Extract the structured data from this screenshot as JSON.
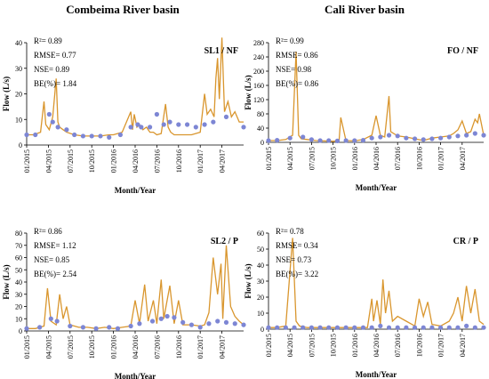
{
  "figure": {
    "left_heading": "Combeima River basin",
    "right_heading": "Cali River basin"
  },
  "colors": {
    "simulated": "#d9962e",
    "observed": "#7d86d4",
    "axis": "#000000"
  },
  "chart_data": [
    {
      "type": "line",
      "panel_id": "SL1 / NF",
      "xlabel": "Month/Year",
      "ylabel": "Flow (L/s)",
      "ylim": [
        0,
        40
      ],
      "yticks": [
        0,
        10,
        20,
        30,
        40
      ],
      "xlim": [
        2015.0,
        2017.5
      ],
      "xticks": [
        "01/2015",
        "04/2015",
        "07/2015",
        "10/2015",
        "01/2016",
        "04/2016",
        "07/2016",
        "10/2016",
        "01/2017",
        "04/2017"
      ],
      "stats": [
        "R²= 0.89",
        "RMSE= 0.77",
        "NSE= 0.89",
        "BE(%)= 1.84"
      ],
      "series": [
        {
          "role": "simulated",
          "x": [
            2015.0,
            2015.08,
            2015.16,
            2015.2,
            2015.22,
            2015.26,
            2015.3,
            2015.34,
            2015.36,
            2015.38,
            2015.42,
            2015.46,
            2015.55,
            2015.65,
            2015.75,
            2015.85,
            2015.95,
            2016.0,
            2016.1,
            2016.2,
            2016.22,
            2016.24,
            2016.27,
            2016.3,
            2016.34,
            2016.38,
            2016.42,
            2016.46,
            2016.5,
            2016.55,
            2016.6,
            2016.63,
            2016.66,
            2016.7,
            2016.75,
            2016.8,
            2016.9,
            2017.0,
            2017.05,
            2017.08,
            2017.12,
            2017.16,
            2017.18,
            2017.2,
            2017.22,
            2017.25,
            2017.28,
            2017.32,
            2017.36,
            2017.4,
            2017.45,
            2017.5
          ],
          "y": [
            4,
            4,
            5,
            17,
            8,
            6,
            11,
            26,
            9,
            7,
            6,
            5,
            4,
            3.5,
            3.5,
            3.5,
            4,
            4,
            5,
            13,
            6,
            12,
            7,
            8,
            6,
            7,
            5,
            5,
            4,
            4.5,
            16,
            7,
            5,
            4,
            4,
            4,
            4,
            5,
            20,
            12,
            14,
            11,
            26,
            34,
            18,
            42,
            13,
            17,
            11,
            13,
            9,
            9
          ]
        },
        {
          "role": "observed",
          "x": [
            2015.0,
            2015.1,
            2015.26,
            2015.3,
            2015.36,
            2015.46,
            2015.55,
            2015.65,
            2015.75,
            2015.85,
            2015.95,
            2016.08,
            2016.2,
            2016.28,
            2016.32,
            2016.42,
            2016.5,
            2016.58,
            2016.65,
            2016.75,
            2016.85,
            2016.95,
            2017.05,
            2017.15,
            2017.3,
            2017.5
          ],
          "y": [
            4,
            4,
            12,
            9,
            7,
            6,
            4,
            3.5,
            3.5,
            3.5,
            3,
            4,
            7,
            8,
            7,
            7,
            12,
            8,
            9,
            8,
            8,
            7,
            8,
            9,
            11,
            7
          ]
        }
      ]
    },
    {
      "type": "line",
      "panel_id": "FO / NF",
      "xlabel": "Month/Year",
      "ylabel": "Flow (L/s)",
      "ylim": [
        0,
        280
      ],
      "yticks": [
        0,
        40,
        80,
        120,
        160,
        200,
        240,
        280
      ],
      "xlim": [
        2015.0,
        2017.5
      ],
      "xticks": [
        "01/2015",
        "04/2015",
        "07/2015",
        "10/2015",
        "01/2016",
        "04/2016",
        "07/2016",
        "10/2016",
        "01/2017",
        "04/2017"
      ],
      "stats": [
        "R²= 0.99",
        "RMSE= 0.86",
        "NSE= 0.98",
        "BE(%)= 0.86"
      ],
      "series": [
        {
          "role": "simulated",
          "x": [
            2015.0,
            2015.1,
            2015.2,
            2015.28,
            2015.32,
            2015.35,
            2015.38,
            2015.45,
            2015.55,
            2015.65,
            2015.75,
            2015.82,
            2015.84,
            2015.9,
            2016.0,
            2016.1,
            2016.2,
            2016.25,
            2016.3,
            2016.35,
            2016.4,
            2016.42,
            2016.5,
            2016.6,
            2016.7,
            2016.8,
            2016.9,
            2017.0,
            2017.1,
            2017.15,
            2017.2,
            2017.25,
            2017.3,
            2017.35,
            2017.4,
            2017.43,
            2017.45,
            2017.5
          ],
          "y": [
            5,
            5,
            8,
            20,
            255,
            20,
            10,
            8,
            5,
            4,
            3,
            5,
            70,
            5,
            4,
            8,
            20,
            75,
            20,
            15,
            130,
            30,
            18,
            15,
            10,
            5,
            12,
            15,
            18,
            25,
            35,
            60,
            25,
            30,
            65,
            55,
            80,
            20
          ]
        },
        {
          "role": "observed",
          "x": [
            2015.0,
            2015.1,
            2015.25,
            2015.4,
            2015.5,
            2015.6,
            2015.7,
            2015.8,
            2015.9,
            2016.0,
            2016.1,
            2016.2,
            2016.3,
            2016.4,
            2016.5,
            2016.6,
            2016.7,
            2016.8,
            2016.9,
            2017.0,
            2017.1,
            2017.2,
            2017.3,
            2017.4,
            2017.5
          ],
          "y": [
            5,
            6,
            12,
            15,
            8,
            5,
            5,
            4,
            5,
            5,
            6,
            12,
            15,
            20,
            18,
            12,
            10,
            8,
            10,
            12,
            15,
            18,
            20,
            25,
            20
          ]
        }
      ]
    },
    {
      "type": "line",
      "panel_id": "SL2 / P",
      "xlabel": "Month/Year",
      "ylabel": "Flow (L/s)",
      "ylim": [
        0,
        80
      ],
      "yticks": [
        0,
        10,
        20,
        30,
        40,
        50,
        60,
        70,
        80
      ],
      "xlim": [
        2015.0,
        2017.5
      ],
      "xticks": [
        "01/2015",
        "04/2015",
        "07/2015",
        "10/2015",
        "01/2016",
        "04/2016",
        "07/2016",
        "10/2016",
        "01/2017",
        "04/2017"
      ],
      "stats": [
        "R²= 0.86",
        "RMSE= 1.12",
        "NSE= 0.85",
        "BE(%)= 2.54"
      ],
      "series": [
        {
          "role": "simulated",
          "x": [
            2015.0,
            2015.1,
            2015.2,
            2015.24,
            2015.28,
            2015.34,
            2015.38,
            2015.42,
            2015.46,
            2015.5,
            2015.6,
            2015.7,
            2015.8,
            2015.9,
            2016.0,
            2016.1,
            2016.2,
            2016.25,
            2016.3,
            2016.36,
            2016.4,
            2016.46,
            2016.5,
            2016.55,
            2016.58,
            2016.65,
            2016.7,
            2016.75,
            2016.8,
            2016.9,
            2017.0,
            2017.05,
            2017.1,
            2017.15,
            2017.2,
            2017.24,
            2017.26,
            2017.3,
            2017.35,
            2017.4,
            2017.45,
            2017.5
          ],
          "y": [
            2,
            2,
            4,
            35,
            8,
            5,
            30,
            10,
            20,
            5,
            3,
            3,
            2,
            3,
            2,
            3,
            4,
            25,
            6,
            38,
            8,
            25,
            6,
            42,
            10,
            37,
            6,
            25,
            5,
            5,
            4,
            5,
            15,
            60,
            30,
            55,
            10,
            70,
            20,
            12,
            8,
            5
          ]
        },
        {
          "role": "observed",
          "x": [
            2015.0,
            2015.15,
            2015.28,
            2015.35,
            2015.5,
            2015.65,
            2015.8,
            2015.95,
            2016.05,
            2016.2,
            2016.3,
            2016.45,
            2016.55,
            2016.62,
            2016.7,
            2016.8,
            2016.9,
            2017.0,
            2017.1,
            2017.2,
            2017.3,
            2017.4,
            2017.5
          ],
          "y": [
            2,
            3,
            10,
            8,
            4,
            3,
            2,
            3,
            2,
            4,
            6,
            8,
            10,
            12,
            11,
            7,
            5,
            3,
            6,
            8,
            7,
            6,
            5
          ]
        }
      ]
    },
    {
      "type": "line",
      "panel_id": "CR / P",
      "xlabel": "Month/Year",
      "ylabel": "Flow (L/s)",
      "ylim": [
        0,
        60
      ],
      "yticks": [
        0,
        10,
        20,
        30,
        40,
        50,
        60
      ],
      "xlim": [
        2015.0,
        2017.5
      ],
      "xticks": [
        "01/2015",
        "04/2015",
        "07/2015",
        "10/2015",
        "01/2016",
        "04/2016",
        "07/2016",
        "10/2016",
        "01/2017",
        "04/2017"
      ],
      "stats": [
        "R²= 0.78",
        "RMSE= 0.34",
        "NSE= 0.73",
        "BE(%)= 3.22"
      ],
      "series": [
        {
          "role": "simulated",
          "x": [
            2015.0,
            2015.1,
            2015.2,
            2015.28,
            2015.32,
            2015.36,
            2015.45,
            2015.55,
            2015.65,
            2015.75,
            2015.85,
            2015.95,
            2016.05,
            2016.15,
            2016.2,
            2016.22,
            2016.26,
            2016.3,
            2016.33,
            2016.36,
            2016.4,
            2016.44,
            2016.5,
            2016.6,
            2016.7,
            2016.75,
            2016.8,
            2016.85,
            2016.9,
            2017.0,
            2017.1,
            2017.15,
            2017.2,
            2017.25,
            2017.3,
            2017.35,
            2017.4,
            2017.45,
            2017.5
          ],
          "y": [
            1,
            1,
            2,
            57,
            5,
            2,
            1,
            1,
            1,
            1,
            1,
            1,
            1,
            1,
            19,
            5,
            18,
            3,
            31,
            10,
            24,
            5,
            8,
            5,
            2,
            19,
            8,
            17,
            3,
            2,
            5,
            10,
            20,
            5,
            27,
            10,
            25,
            5,
            3
          ]
        },
        {
          "role": "observed",
          "x": [
            2015.0,
            2015.1,
            2015.2,
            2015.3,
            2015.4,
            2015.5,
            2015.6,
            2015.7,
            2015.8,
            2015.9,
            2016.0,
            2016.1,
            2016.2,
            2016.3,
            2016.4,
            2016.5,
            2016.6,
            2016.7,
            2016.8,
            2016.9,
            2017.0,
            2017.1,
            2017.2,
            2017.3,
            2017.4,
            2017.5
          ],
          "y": [
            1,
            1,
            1,
            1,
            1,
            1,
            1,
            1,
            1,
            1,
            1,
            1,
            1,
            2,
            1,
            1,
            1,
            1,
            1,
            1,
            1,
            1,
            1,
            2,
            1,
            1
          ]
        }
      ]
    }
  ]
}
